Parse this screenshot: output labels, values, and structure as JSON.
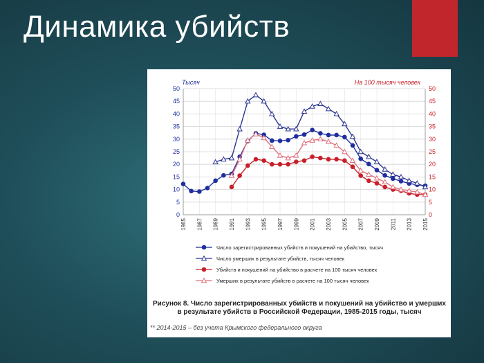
{
  "slide": {
    "title": "Динамика убийств",
    "accent_color": "#c0262b"
  },
  "figure": {
    "caption": "Рисунок 8. Число зарегистрированных убийств и покушений на убийство и умерших в результате убийств в Российской Федерации, 1985-2015 годы, тысяч",
    "note": "** 2014-2015 – без учета Крымского федерального округа"
  },
  "chart_data": {
    "type": "line",
    "left_axis_label": "Тысяч",
    "right_axis_label": "На 100 тысяч человек",
    "left_ylim": [
      0,
      50
    ],
    "right_ylim": [
      0,
      50
    ],
    "y_ticks": [
      0,
      5,
      10,
      15,
      20,
      25,
      30,
      35,
      40,
      45,
      50
    ],
    "x_ticks": [
      1985,
      1987,
      1989,
      1991,
      1993,
      1995,
      1997,
      1999,
      2001,
      2003,
      2005,
      2007,
      2009,
      2011,
      2013,
      2015
    ],
    "x_range": [
      1985,
      2015
    ],
    "grid": true,
    "legend_position": "bottom",
    "series": [
      {
        "name": "Число зарегистрированных убийств и покушений на убийство, тысяч",
        "color": "#1f2fa0",
        "marker": "circle-filled",
        "axis": "left",
        "x": [
          1985,
          1986,
          1987,
          1988,
          1989,
          1990,
          1991,
          1992,
          1993,
          1994,
          1995,
          1996,
          1997,
          1998,
          1999,
          2000,
          2001,
          2002,
          2003,
          2004,
          2005,
          2006,
          2007,
          2008,
          2009,
          2010,
          2011,
          2012,
          2013,
          2014,
          2015
        ],
        "values": [
          12.2,
          9.4,
          9.2,
          10.6,
          13.5,
          15.6,
          16.2,
          23.0,
          29.2,
          32.3,
          31.7,
          29.4,
          29.3,
          29.6,
          31.1,
          31.8,
          33.6,
          32.3,
          31.6,
          31.6,
          30.8,
          27.5,
          22.2,
          20.1,
          17.7,
          15.6,
          14.3,
          13.3,
          12.4,
          11.9,
          11.5
        ]
      },
      {
        "name": "Число умерших в результате убийств, тысяч человек",
        "color": "#2a3590",
        "marker": "triangle-open",
        "axis": "left",
        "x": [
          1989,
          1990,
          1991,
          1992,
          1993,
          1994,
          1995,
          1996,
          1997,
          1998,
          1999,
          2000,
          2001,
          2002,
          2003,
          2004,
          2005,
          2006,
          2007,
          2008,
          2009,
          2010,
          2011,
          2012,
          2013,
          2014,
          2015
        ],
        "values": [
          20.9,
          22.0,
          22.5,
          34.0,
          45.0,
          47.5,
          45.0,
          40.0,
          35.0,
          34.0,
          34.0,
          41.0,
          43.0,
          44.0,
          42.0,
          40.0,
          36.0,
          31.0,
          25.0,
          23.0,
          21.0,
          18.0,
          16.0,
          15.0,
          13.5,
          12.5,
          11.0
        ]
      },
      {
        "name": "Убийств и покушений на убийство в расчете на 100 тысяч человек",
        "color": "#c8202a",
        "marker": "circle-filled",
        "axis": "right",
        "x": [
          1991,
          1992,
          1993,
          1994,
          1995,
          1996,
          1997,
          1998,
          1999,
          2000,
          2001,
          2002,
          2003,
          2004,
          2005,
          2006,
          2007,
          2008,
          2009,
          2010,
          2011,
          2012,
          2013,
          2014,
          2015
        ],
        "values": [
          11.0,
          15.5,
          19.5,
          22.0,
          21.5,
          20.0,
          20.0,
          20.0,
          21.0,
          21.5,
          23.0,
          22.5,
          22.0,
          22.0,
          21.5,
          19.0,
          15.5,
          13.5,
          12.5,
          11.0,
          10.0,
          9.5,
          8.5,
          8.0,
          8.0
        ]
      },
      {
        "name": "Умерших в результате убийств в расчете на 100 тысяч человек",
        "color": "#e0707a",
        "marker": "triangle-open",
        "axis": "right",
        "x": [
          1991,
          1992,
          1993,
          1994,
          1995,
          1996,
          1997,
          1998,
          1999,
          2000,
          2001,
          2002,
          2003,
          2004,
          2005,
          2006,
          2007,
          2008,
          2009,
          2010,
          2011,
          2012,
          2013,
          2014,
          2015
        ],
        "values": [
          15.5,
          22.0,
          29.5,
          32.0,
          30.5,
          27.0,
          23.5,
          22.5,
          23.5,
          28.5,
          29.5,
          30.0,
          29.0,
          27.5,
          25.0,
          21.5,
          17.5,
          16.0,
          14.5,
          13.0,
          11.0,
          10.0,
          9.5,
          9.0,
          8.0
        ]
      }
    ]
  }
}
